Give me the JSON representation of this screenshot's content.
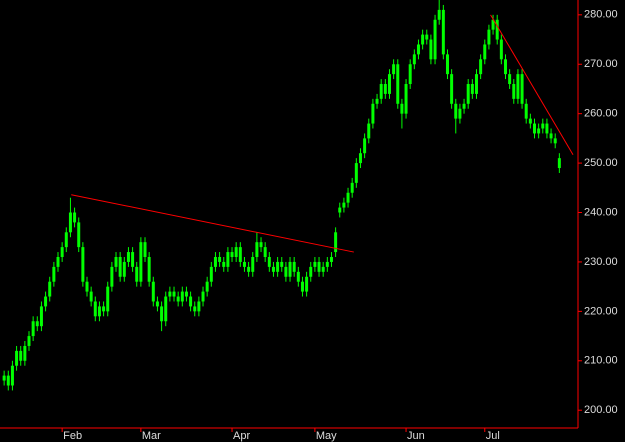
{
  "chart_data": {
    "type": "candlestick",
    "background": "#000000",
    "color": "#00ff00",
    "axis_color": "#ff0000",
    "label_color": "#dddddd",
    "trendline_color": "#ff0000",
    "xlim": [
      -1,
      138.5
    ],
    "xticks": [
      {
        "value": 14,
        "label": "Feb"
      },
      {
        "value": 33,
        "label": "Mar"
      },
      {
        "value": 55,
        "label": "Apr"
      },
      {
        "value": 75,
        "label": "May"
      },
      {
        "value": 97,
        "label": "Jun"
      },
      {
        "value": 116,
        "label": "Jul"
      }
    ],
    "ylim": [
      196.4,
      283
    ],
    "yticks": [
      {
        "value": 200,
        "label": "200.00"
      },
      {
        "value": 210,
        "label": "210.00"
      },
      {
        "value": 220,
        "label": "220.00"
      },
      {
        "value": 230,
        "label": "230.00"
      },
      {
        "value": 240,
        "label": "240.00"
      },
      {
        "value": 250,
        "label": "250.00"
      },
      {
        "value": 260,
        "label": "260.00"
      },
      {
        "value": 270,
        "label": "270.00"
      },
      {
        "value": 280,
        "label": "280.00"
      }
    ],
    "x": [
      0,
      1,
      2,
      3,
      4,
      5,
      6,
      7,
      8,
      9,
      10,
      11,
      12,
      13,
      14,
      15,
      16,
      17,
      18,
      19,
      20,
      21,
      22,
      23,
      24,
      25,
      26,
      27,
      28,
      29,
      30,
      31,
      32,
      33,
      34,
      35,
      36,
      37,
      38,
      39,
      40,
      41,
      42,
      43,
      44,
      45,
      46,
      47,
      48,
      49,
      50,
      51,
      52,
      53,
      54,
      55,
      56,
      57,
      58,
      59,
      60,
      61,
      62,
      63,
      64,
      65,
      66,
      67,
      68,
      69,
      70,
      71,
      72,
      73,
      74,
      75,
      76,
      77,
      78,
      79,
      80,
      81,
      82,
      83,
      84,
      85,
      86,
      87,
      88,
      89,
      90,
      91,
      92,
      93,
      94,
      95,
      96,
      97,
      98,
      99,
      100,
      101,
      102,
      103,
      104,
      105,
      106,
      107,
      108,
      109,
      110,
      111,
      112,
      113,
      114,
      115,
      116,
      117,
      118,
      119,
      120,
      121,
      122,
      123,
      124,
      125,
      126,
      127,
      128,
      129,
      130,
      131,
      132,
      133,
      134
    ],
    "open": [
      206,
      207,
      205,
      209,
      212,
      210,
      213,
      215,
      218,
      217,
      221,
      223,
      226,
      229,
      231,
      233,
      236,
      240,
      238,
      233,
      226,
      224,
      222,
      219,
      221,
      220,
      225,
      229,
      231,
      227,
      230,
      232,
      229,
      226,
      234,
      231,
      226,
      222,
      221,
      218,
      223,
      224,
      223,
      222,
      224,
      223,
      221,
      220,
      222,
      224,
      226,
      229,
      231,
      230,
      229,
      232,
      231,
      233,
      230,
      229,
      228,
      231,
      234,
      233,
      231,
      229,
      228,
      230,
      229,
      227,
      230,
      228,
      226,
      224,
      227,
      229,
      230,
      228,
      229,
      230,
      232,
      240,
      241,
      242,
      244,
      246,
      250,
      252,
      255,
      258,
      262,
      263,
      266,
      264,
      268,
      270,
      262,
      260,
      266,
      270,
      272,
      274,
      276,
      275,
      271,
      279,
      281,
      272,
      268,
      262,
      259,
      261,
      262,
      266,
      264,
      268,
      271,
      274,
      277,
      279,
      275,
      271,
      268,
      266,
      263,
      268,
      262,
      259,
      258,
      256,
      257,
      258,
      256,
      255,
      251
    ],
    "high": [
      208,
      208,
      210,
      213,
      213,
      214,
      216,
      219,
      219,
      222,
      224,
      227,
      230,
      232,
      234,
      237,
      243,
      241,
      239,
      234,
      227,
      225,
      223,
      222,
      222,
      226,
      230,
      232,
      232,
      231,
      233,
      233,
      230,
      235,
      235,
      232,
      227,
      223,
      222,
      224,
      225,
      225,
      224,
      225,
      225,
      224,
      222,
      223,
      225,
      227,
      230,
      232,
      232,
      231,
      233,
      233,
      234,
      234,
      231,
      230,
      232,
      236,
      235,
      234,
      232,
      230,
      231,
      231,
      230,
      231,
      231,
      229,
      227,
      228,
      230,
      231,
      231,
      230,
      231,
      232,
      237,
      242,
      243,
      245,
      247,
      251,
      253,
      256,
      259,
      263,
      264,
      267,
      267,
      269,
      271,
      271,
      263,
      267,
      271,
      273,
      275,
      277,
      277,
      276,
      280,
      283,
      282,
      273,
      269,
      263,
      262,
      263,
      267,
      267,
      269,
      272,
      275,
      278,
      280,
      280,
      276,
      272,
      269,
      267,
      269,
      269,
      263,
      260,
      259,
      258,
      259,
      259,
      257,
      256,
      252
    ],
    "low": [
      205,
      204,
      204,
      208,
      209,
      209,
      212,
      214,
      216,
      216,
      220,
      222,
      225,
      228,
      230,
      232,
      235,
      237,
      232,
      225,
      223,
      221,
      218,
      218,
      219,
      219,
      224,
      228,
      226,
      226,
      229,
      228,
      225,
      225,
      230,
      225,
      221,
      220,
      216,
      217,
      222,
      222,
      221,
      221,
      222,
      220,
      219,
      219,
      221,
      223,
      225,
      228,
      229,
      228,
      228,
      230,
      230,
      229,
      228,
      227,
      227,
      230,
      232,
      230,
      228,
      227,
      227,
      228,
      226,
      226,
      227,
      225,
      223,
      223,
      226,
      228,
      227,
      227,
      228,
      229,
      231,
      239,
      240,
      241,
      243,
      245,
      249,
      251,
      254,
      257,
      261,
      262,
      263,
      263,
      267,
      261,
      257,
      259,
      265,
      269,
      271,
      273,
      274,
      270,
      270,
      278,
      271,
      267,
      261,
      256,
      258,
      260,
      261,
      263,
      263,
      267,
      270,
      273,
      276,
      274,
      270,
      267,
      265,
      262,
      262,
      261,
      258,
      257,
      255,
      255,
      256,
      255,
      254,
      253,
      248
    ],
    "close": [
      207,
      205,
      209,
      212,
      210,
      213,
      215,
      218,
      217,
      221,
      223,
      226,
      229,
      231,
      233,
      236,
      240,
      238,
      233,
      226,
      224,
      222,
      219,
      221,
      220,
      225,
      229,
      231,
      227,
      230,
      232,
      229,
      226,
      234,
      231,
      226,
      222,
      221,
      218,
      223,
      224,
      223,
      222,
      224,
      223,
      221,
      220,
      222,
      224,
      226,
      229,
      231,
      230,
      229,
      232,
      231,
      233,
      230,
      229,
      228,
      231,
      234,
      233,
      231,
      229,
      228,
      230,
      229,
      227,
      230,
      228,
      226,
      224,
      227,
      229,
      230,
      228,
      229,
      230,
      231,
      236,
      241,
      242,
      244,
      246,
      250,
      252,
      255,
      258,
      262,
      263,
      266,
      264,
      268,
      270,
      262,
      260,
      266,
      270,
      272,
      274,
      276,
      275,
      271,
      279,
      281,
      272,
      268,
      262,
      259,
      261,
      262,
      266,
      264,
      268,
      271,
      274,
      277,
      279,
      275,
      271,
      268,
      266,
      263,
      268,
      262,
      259,
      258,
      256,
      257,
      258,
      256,
      255,
      254,
      249
    ],
    "trendlines": [
      {
        "x": [
          16.2,
          84.4
        ],
        "y": [
          243.6,
          232
        ]
      },
      {
        "x": [
          117.4,
          137.3
        ],
        "y": [
          280,
          251.7
        ]
      }
    ]
  }
}
